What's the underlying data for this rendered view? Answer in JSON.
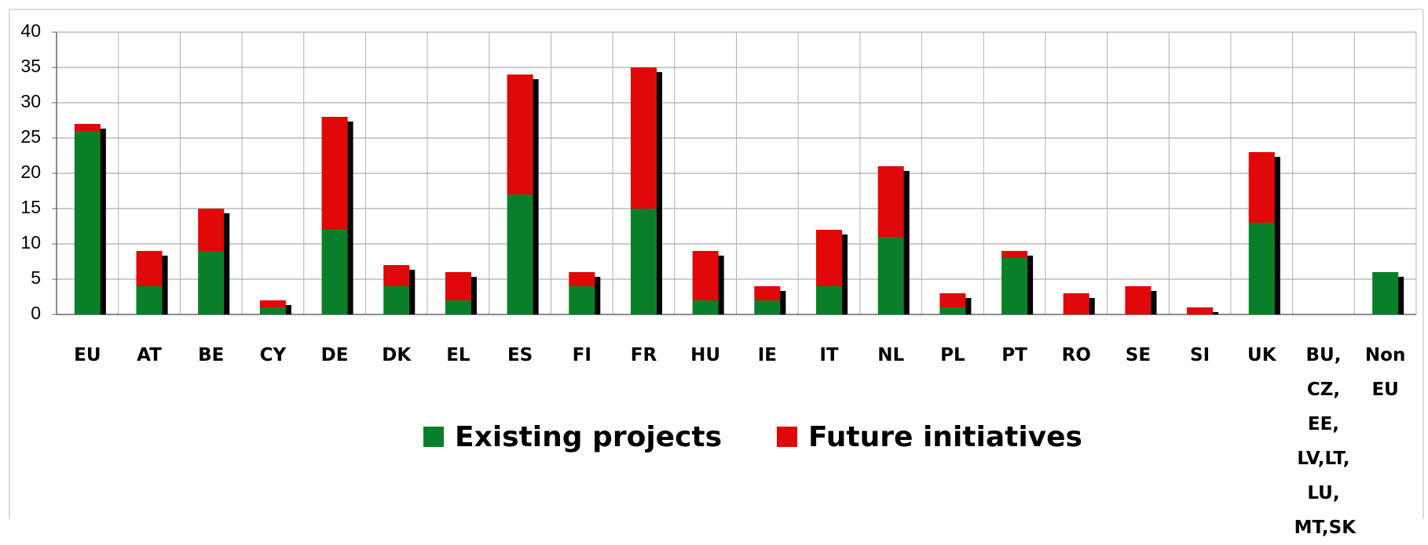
{
  "chart_data": {
    "type": "stacked_bar",
    "categories": [
      "EU",
      "AT",
      "BE",
      "CY",
      "DE",
      "DK",
      "EL",
      "ES",
      "FI",
      "FR",
      "HU",
      "IE",
      "IT",
      "NL",
      "PL",
      "PT",
      "RO",
      "SE",
      "SI",
      "UK",
      "BU, CZ, EE, LV,LT, LU, MT,SK",
      "Non EU"
    ],
    "series": [
      {
        "name": "Existing projects",
        "color": "#0a7f2a",
        "values": [
          26,
          4,
          9,
          1,
          12,
          4,
          2,
          17,
          4,
          15,
          2,
          2,
          4,
          11,
          1,
          8,
          0,
          0,
          0,
          13,
          0,
          6
        ]
      },
      {
        "name": "Future initiatives",
        "color": "#e00808",
        "values": [
          1,
          5,
          6,
          1,
          16,
          3,
          4,
          17,
          2,
          20,
          7,
          2,
          8,
          10,
          2,
          1,
          3,
          4,
          1,
          10,
          0,
          0
        ]
      }
    ],
    "ylim": [
      0,
      40
    ],
    "yticks": [
      0,
      5,
      10,
      15,
      20,
      25,
      30,
      35,
      40
    ],
    "grid": true,
    "legend": "bottom"
  }
}
